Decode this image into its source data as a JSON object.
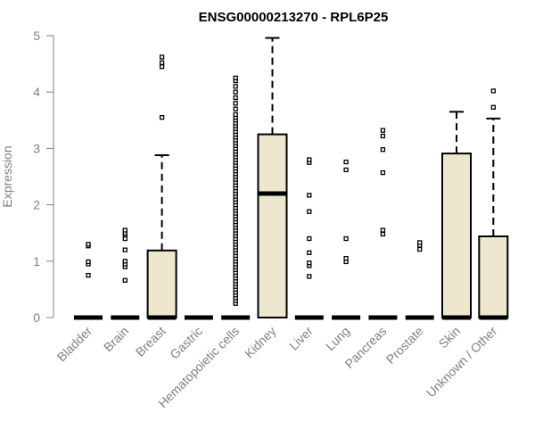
{
  "chart_data": {
    "type": "box",
    "title": "ENSG00000213270 - RPL6P25",
    "xlabel": "",
    "ylabel": "Expression",
    "ylim": [
      0,
      5
    ],
    "yticks": [
      0,
      1,
      2,
      3,
      4,
      5
    ],
    "grid": false,
    "legend": "none",
    "colors": {
      "box_fill": "#ede7cd",
      "stroke": "#000000",
      "axis": "#808080"
    },
    "categories": [
      "Bladder",
      "Brain",
      "Breast",
      "Gastric",
      "Hematopoietic cells",
      "Kidney",
      "Liver",
      "Lung",
      "Pancreas",
      "Prostate",
      "Skin",
      "Unknown / Other"
    ],
    "boxes": [
      {
        "category": "Bladder",
        "q1": 0,
        "median": 0,
        "q3": 0,
        "whisker_low": 0,
        "whisker_high": 0,
        "outliers": [
          0.75,
          0.95,
          0.99,
          1.27,
          1.3
        ]
      },
      {
        "category": "Brain",
        "q1": 0,
        "median": 0,
        "q3": 0,
        "whisker_low": 0,
        "whisker_high": 0,
        "outliers": [
          0.66,
          0.9,
          0.95,
          1.0,
          1.2,
          1.4,
          1.47,
          1.5,
          1.55
        ]
      },
      {
        "category": "Breast",
        "q1": 0,
        "median": 0,
        "q3": 1.19,
        "whisker_low": 0,
        "whisker_high": 2.88,
        "outliers": [
          3.55,
          4.45,
          4.52,
          4.62
        ]
      },
      {
        "category": "Gastric",
        "q1": 0,
        "median": 0,
        "q3": 0,
        "whisker_low": 0,
        "whisker_high": 0,
        "outliers": []
      },
      {
        "category": "Hematopoietic cells",
        "q1": 0,
        "median": 0,
        "q3": 0,
        "whisker_low": 0,
        "whisker_high": 0,
        "outliers": [
          0.25,
          0.3,
          0.35,
          0.4,
          0.45,
          0.5,
          0.55,
          0.6,
          0.65,
          0.7,
          0.75,
          0.8,
          0.85,
          0.9,
          0.95,
          1.0,
          1.05,
          1.1,
          1.15,
          1.2,
          1.25,
          1.3,
          1.35,
          1.4,
          1.45,
          1.5,
          1.55,
          1.6,
          1.65,
          1.7,
          1.75,
          1.8,
          1.85,
          1.9,
          1.95,
          2.0,
          2.05,
          2.1,
          2.15,
          2.2,
          2.25,
          2.3,
          2.35,
          2.4,
          2.45,
          2.5,
          2.55,
          2.6,
          2.65,
          2.7,
          2.75,
          2.8,
          2.85,
          2.9,
          2.95,
          3.0,
          3.05,
          3.1,
          3.15,
          3.2,
          3.25,
          3.3,
          3.35,
          3.4,
          3.45,
          3.5,
          3.55,
          3.6,
          3.7,
          3.8,
          3.9,
          4.0,
          4.1,
          4.2,
          4.25
        ]
      },
      {
        "category": "Kidney",
        "q1": 0,
        "median": 2.2,
        "q3": 3.25,
        "whisker_low": 0,
        "whisker_high": 4.96,
        "outliers": []
      },
      {
        "category": "Liver",
        "q1": 0,
        "median": 0,
        "q3": 0,
        "whisker_low": 0,
        "whisker_high": 0,
        "outliers": [
          0.73,
          0.92,
          0.97,
          1.15,
          1.4,
          1.88,
          2.17,
          2.75,
          2.8
        ]
      },
      {
        "category": "Lung",
        "q1": 0,
        "median": 0,
        "q3": 0,
        "whisker_low": 0,
        "whisker_high": 0,
        "outliers": [
          0.99,
          1.05,
          1.4,
          2.62,
          2.76
        ]
      },
      {
        "category": "Pancreas",
        "q1": 0,
        "median": 0,
        "q3": 0,
        "whisker_low": 0,
        "whisker_high": 0,
        "outliers": [
          1.48,
          1.55,
          2.57,
          2.98,
          3.22,
          3.32
        ]
      },
      {
        "category": "Prostate",
        "q1": 0,
        "median": 0,
        "q3": 0,
        "whisker_low": 0,
        "whisker_high": 0,
        "outliers": [
          1.21,
          1.28,
          1.33
        ]
      },
      {
        "category": "Skin",
        "q1": 0,
        "median": 0,
        "q3": 2.91,
        "whisker_low": 0,
        "whisker_high": 3.65,
        "outliers": []
      },
      {
        "category": "Unknown / Other",
        "q1": 0,
        "median": 0,
        "q3": 1.44,
        "whisker_low": 0,
        "whisker_high": 3.53,
        "outliers": [
          3.73,
          4.02
        ]
      }
    ]
  }
}
